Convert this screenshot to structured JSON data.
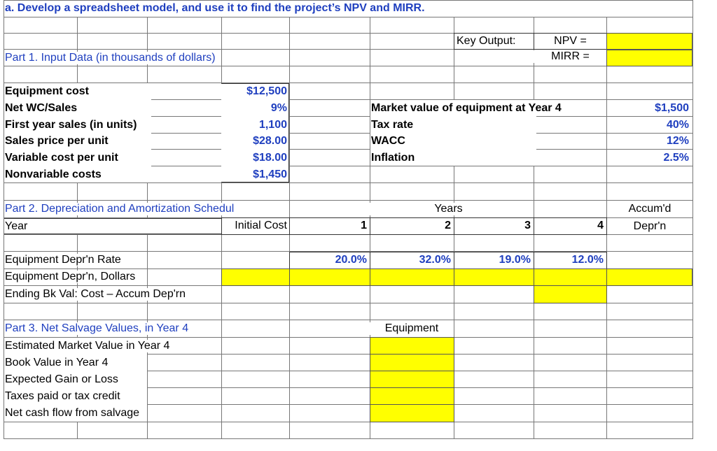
{
  "title": "a. Develop a spreadsheet model, and use it to find the project’s NPV and MIRR.",
  "key_output": {
    "label": "Key Output:",
    "npv_label": "NPV =",
    "mirr_label": "MIRR ="
  },
  "part1": {
    "heading": "Part 1. Input Data (in thousands of dollars)",
    "left_rows": [
      {
        "label": "Equipment  cost",
        "value": "$12,500"
      },
      {
        "label": "Net WC/Sales",
        "value": "9%"
      },
      {
        "label": "First year sales (in units)",
        "value": "1,100"
      },
      {
        "label": "Sales price per unit",
        "value": "$28.00"
      },
      {
        "label": "Variable cost per unit",
        "value": "$18.00"
      },
      {
        "label": "Nonvariable costs",
        "value": "$1,450"
      }
    ],
    "right_rows": [
      {
        "label": "Market value of equipment at Year 4",
        "value": "$1,500"
      },
      {
        "label": "Tax rate",
        "value": "40%"
      },
      {
        "label": "WACC",
        "value": "12%"
      },
      {
        "label": "Inflation",
        "value": "2.5%"
      }
    ]
  },
  "part2": {
    "heading": "Part 2. Depreciation and Amortization Schedul",
    "years_label": "Years",
    "accum_label_1": "Accum'd",
    "accum_label_2": "Depr'n",
    "year_label": "Year",
    "initial_cost_label": "Initial Cost",
    "years": [
      "1",
      "2",
      "3",
      "4"
    ],
    "rate_label": "Equipment Depr'n Rate",
    "rates": [
      "20.0%",
      "32.0%",
      "19.0%",
      "12.0%"
    ],
    "dollars_label": "Equipment Depr'n, Dollars",
    "ending_label": "Ending Bk Val: Cost – Accum Dep'rn"
  },
  "part3": {
    "heading": "Part 3. Net Salvage Values, in Year 4",
    "column_label": "Equipment",
    "rows": [
      "Estimated Market Value in Year 4",
      "Book Value in Year 4",
      "Expected Gain or Loss",
      "Taxes paid or tax credit",
      "Net cash flow from salvage"
    ]
  },
  "colors": {
    "input_fill": "#ffff00",
    "heading_blue": "#1f3fbf",
    "grid": "#777777"
  }
}
